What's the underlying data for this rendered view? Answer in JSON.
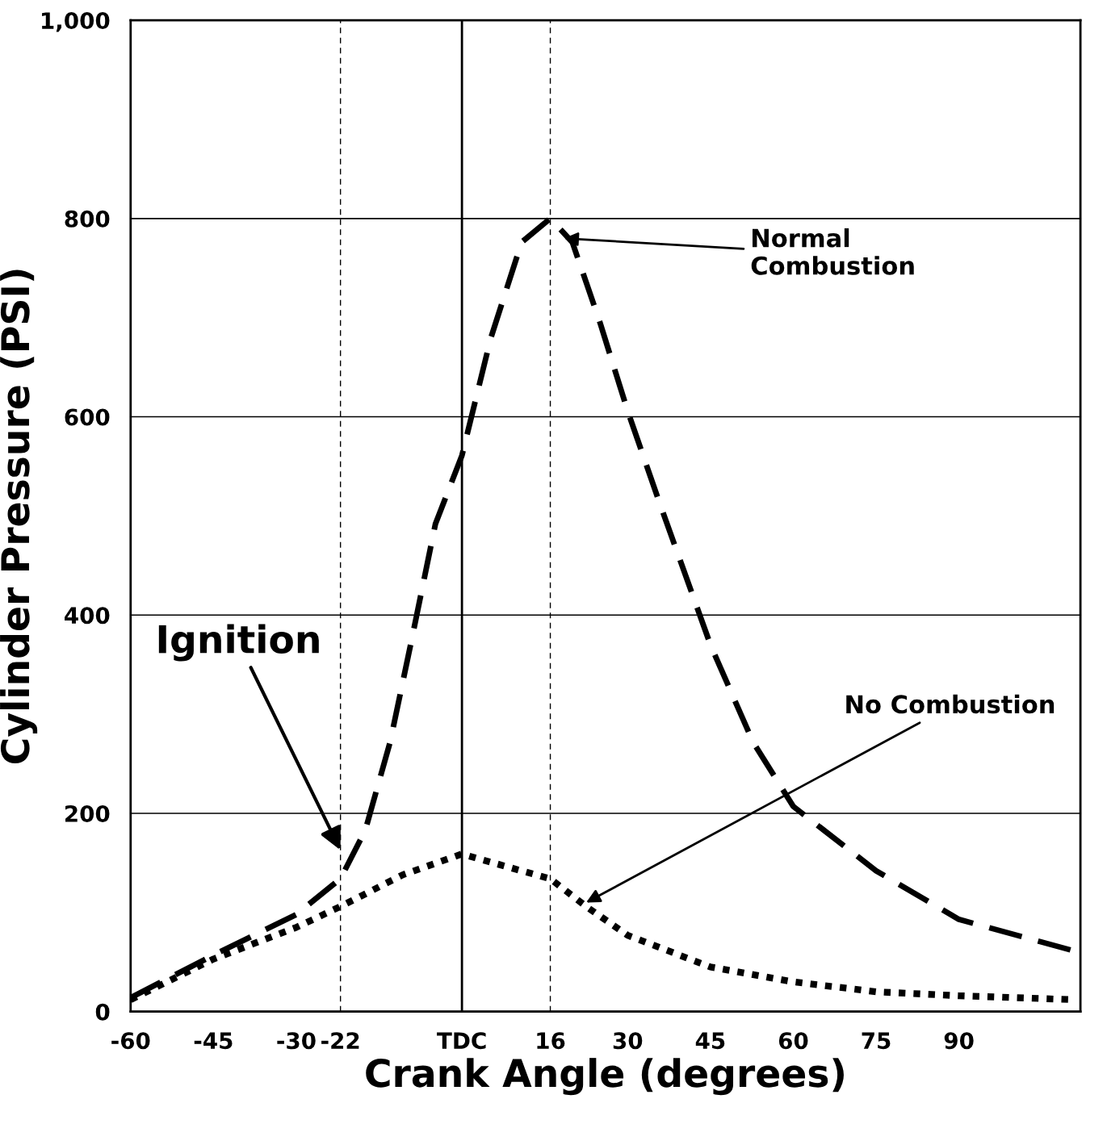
{
  "chart_data": {
    "type": "line",
    "xlabel": "Crank Angle (degrees)",
    "ylabel": "Cylinder Pressure (PSI)",
    "xlim": [
      -60,
      112
    ],
    "ylim": [
      0,
      1000
    ],
    "xticks": [
      -60,
      -45,
      -30,
      -22,
      {
        "value": 0,
        "label": "TDC"
      },
      16,
      30,
      45,
      60,
      75,
      90
    ],
    "yticks": [
      0,
      200,
      400,
      600,
      800,
      {
        "value": 1000,
        "label": "1,000"
      }
    ],
    "grid": "y",
    "legend": false,
    "marker": "none",
    "series": [
      {
        "color": "#000000",
        "line_style": "dashed",
        "x": [
          -60,
          -45,
          -30,
          -22,
          -17.5,
          -13,
          -9,
          -4.8,
          0,
          5.2,
          10.8,
          16,
          20,
          25,
          30,
          35.6,
          45,
          52.7,
          60,
          75,
          90,
          111
        ],
        "values": [
          14,
          57,
          98,
          134,
          183,
          272,
          378,
          492,
          561,
          679,
          776,
          800,
          776,
          695,
          606,
          516,
          370,
          272,
          207,
          142,
          93,
          61
        ]
      },
      {
        "color": "#000000",
        "line_style": "dotted",
        "x": [
          -60,
          -45,
          -30,
          -22,
          -10.7,
          0,
          10.8,
          16,
          22.5,
          30,
          45,
          60,
          75,
          90,
          111
        ],
        "values": [
          12,
          53,
          85,
          106,
          138,
          159,
          142,
          134,
          106,
          77,
          45,
          30,
          20,
          16,
          12
        ]
      }
    ],
    "ref_lines": [
      {
        "axis": "x",
        "value": -22,
        "line_style": "dashed",
        "color": "#000000"
      },
      {
        "axis": "x",
        "value": 0,
        "line_style": "solid",
        "color": "#000000"
      },
      {
        "axis": "x",
        "value": 16,
        "line_style": "dashed",
        "color": "#000000"
      }
    ],
    "annotations": [
      {
        "text": "Ignition",
        "x": -22,
        "y": 163
      },
      {
        "text": "Normal\nCombustion",
        "x": 18.5,
        "y": 780
      },
      {
        "text": "No Combustion",
        "x": 22.5,
        "y": 110
      }
    ]
  }
}
